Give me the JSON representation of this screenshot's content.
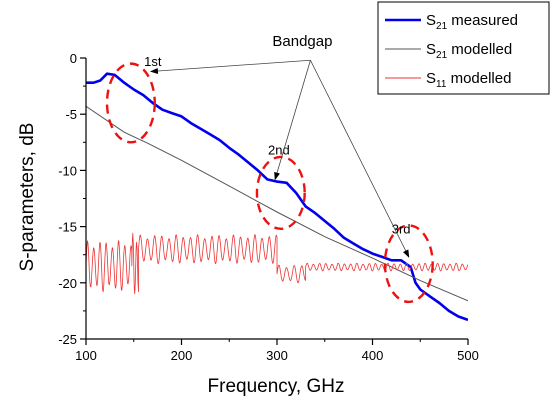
{
  "chart_data": {
    "type": "line",
    "xlabel": "Frequency, GHz",
    "ylabel": "S-parameters, dB",
    "xlim": [
      100,
      500
    ],
    "ylim": [
      -25,
      0
    ],
    "x_ticks": [
      100,
      200,
      300,
      400,
      500
    ],
    "y_ticks": [
      0,
      -5,
      -10,
      -15,
      -20,
      -25
    ],
    "x_tick_labels": [
      "100",
      "200",
      "300",
      "400",
      "500"
    ],
    "y_tick_labels": [
      "0",
      "-5",
      "-10",
      "-15",
      "-20",
      "-25"
    ],
    "grid": false,
    "legend_position": "top-right",
    "series": [
      {
        "name_main": "S",
        "name_sub": "21",
        "name_rest": " measured",
        "color": "#0000ee",
        "style": "thick",
        "x": [
          100,
          108,
          115,
          122,
          130,
          140,
          150,
          160,
          170,
          180,
          190,
          200,
          210,
          220,
          230,
          240,
          250,
          260,
          270,
          280,
          290,
          300,
          310,
          320,
          330,
          340,
          350,
          360,
          370,
          380,
          390,
          400,
          410,
          420,
          430,
          435,
          440,
          445,
          450,
          460,
          470,
          480,
          490,
          500
        ],
        "y": [
          -2.2,
          -2.2,
          -2.0,
          -1.4,
          -1.5,
          -2.2,
          -2.8,
          -3.3,
          -4.0,
          -4.6,
          -4.9,
          -5.2,
          -5.8,
          -6.3,
          -6.8,
          -7.3,
          -8.0,
          -8.6,
          -9.3,
          -10.0,
          -10.8,
          -11.0,
          -11.1,
          -12.0,
          -13.2,
          -13.8,
          -14.5,
          -15.2,
          -16.0,
          -16.5,
          -17.0,
          -17.4,
          -17.7,
          -18.0,
          -18.0,
          -18.3,
          -18.6,
          -20.0,
          -20.6,
          -21.2,
          -21.8,
          -22.5,
          -23.0,
          -23.3
        ]
      },
      {
        "name_main": "S",
        "name_sub": "21",
        "name_rest": " modelled",
        "color": "#555555",
        "style": "thin",
        "x": [
          100,
          140,
          155,
          165,
          200,
          250,
          300,
          350,
          400,
          450,
          500
        ],
        "y": [
          -4.3,
          -6.6,
          -7.2,
          -7.6,
          -9.1,
          -11.4,
          -13.7,
          -15.9,
          -17.8,
          -19.8,
          -21.6
        ]
      },
      {
        "name_main": "S",
        "name_sub": "11",
        "name_rest": " modelled",
        "color": "#ee3333",
        "style": "oscillating",
        "segments": [
          {
            "x_start": 100,
            "x_end": 148,
            "center": -18.5,
            "amplitude": 2.3,
            "period": 6.5
          },
          {
            "x_start": 148,
            "x_end": 155,
            "center": -18.5,
            "amplitude": 3.0,
            "period": 4.0
          },
          {
            "x_start": 155,
            "x_end": 300,
            "center": -17.0,
            "amplitude": 1.3,
            "period": 7.5
          },
          {
            "x_start": 300,
            "x_end": 330,
            "center": -19.2,
            "amplitude": 0.8,
            "period": 8.0
          },
          {
            "x_start": 330,
            "x_end": 500,
            "center": -18.6,
            "amplitude": 0.35,
            "period": 6.5
          }
        ]
      }
    ],
    "annotations": {
      "bandgap_label": "Bandgap",
      "bandgap_anchor": [
        335,
        -0.2
      ],
      "regions": [
        {
          "label": "1st",
          "cx": 147,
          "cy": -4.0,
          "rx_data": 25,
          "ry_data": 3.5,
          "label_pos": [
            170,
            -0.7
          ],
          "arrow_to": [
            168,
            -1.2
          ]
        },
        {
          "label": "2nd",
          "cx": 304,
          "cy": -12.0,
          "rx_data": 25,
          "ry_data": 3.2,
          "label_pos": [
            302,
            -8.6
          ],
          "arrow_to": [
            298,
            -10.8
          ]
        },
        {
          "label": "3rd",
          "cx": 438,
          "cy": -18.3,
          "rx_data": 25,
          "ry_data": 3.4,
          "label_pos": [
            430,
            -15.6
          ],
          "arrow_to": [
            438,
            -17.7
          ]
        }
      ]
    }
  }
}
